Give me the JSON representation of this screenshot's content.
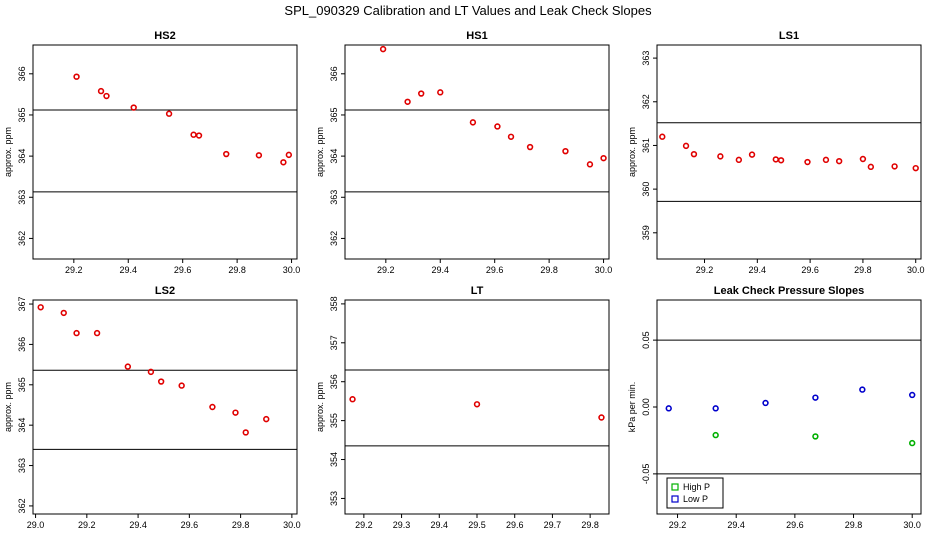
{
  "figure_title": "SPL_090329  Calibration and LT Values and Leak Check Slopes",
  "colors": {
    "points": "#e00000",
    "high_p": "#00b000",
    "low_p": "#0000cc",
    "axis": "#000000"
  },
  "chart_data": [
    {
      "type": "scatter",
      "title": "HS2",
      "xlabel": "",
      "ylabel": "approx. ppm",
      "xlim": [
        29.05,
        30.02
      ],
      "ylim": [
        361.5,
        366.7
      ],
      "xticks": [
        29.2,
        29.4,
        29.6,
        29.8,
        30.0
      ],
      "xtick_labels": [
        "29.2",
        "29.4",
        "29.6",
        "29.8",
        "30.0"
      ],
      "yticks": [
        362,
        363,
        364,
        365,
        366
      ],
      "ytick_labels": [
        "362",
        "363",
        "364",
        "365",
        "366"
      ],
      "hlines": [
        365.12,
        363.13
      ],
      "series": [
        {
          "x": [
            29.21,
            29.3,
            29.32,
            29.42,
            29.55,
            29.64,
            29.66,
            29.76,
            29.88,
            29.97,
            29.99
          ],
          "y": [
            365.93,
            365.58,
            365.46,
            365.18,
            365.03,
            364.52,
            364.5,
            364.05,
            364.02,
            363.85,
            364.03
          ]
        }
      ]
    },
    {
      "type": "scatter",
      "title": "HS1",
      "xlabel": "",
      "ylabel": "approx. ppm",
      "xlim": [
        29.05,
        30.02
      ],
      "ylim": [
        361.5,
        366.7
      ],
      "xticks": [
        29.2,
        29.4,
        29.6,
        29.8,
        30.0
      ],
      "xtick_labels": [
        "29.2",
        "29.4",
        "29.6",
        "29.8",
        "30.0"
      ],
      "yticks": [
        362,
        363,
        364,
        365,
        366
      ],
      "ytick_labels": [
        "362",
        "363",
        "364",
        "365",
        "366"
      ],
      "hlines": [
        365.12,
        363.13
      ],
      "series": [
        {
          "x": [
            29.19,
            29.28,
            29.33,
            29.4,
            29.52,
            29.61,
            29.66,
            29.73,
            29.86,
            29.95,
            30.0
          ],
          "y": [
            366.6,
            365.32,
            365.52,
            365.55,
            364.82,
            364.72,
            364.47,
            364.22,
            364.12,
            363.8,
            363.95
          ]
        }
      ]
    },
    {
      "type": "scatter",
      "title": "LS1",
      "xlabel": "",
      "ylabel": "approx. ppm",
      "xlim": [
        29.02,
        30.02
      ],
      "ylim": [
        358.4,
        363.3
      ],
      "xticks": [
        29.2,
        29.4,
        29.6,
        29.8,
        30.0
      ],
      "xtick_labels": [
        "29.2",
        "29.4",
        "29.6",
        "29.8",
        "30.0"
      ],
      "yticks": [
        359,
        360,
        361,
        362,
        363
      ],
      "ytick_labels": [
        "359",
        "360",
        "361",
        "362",
        "363"
      ],
      "hlines": [
        361.52,
        359.72
      ],
      "series": [
        {
          "x": [
            29.04,
            29.13,
            29.16,
            29.26,
            29.33,
            29.38,
            29.47,
            29.49,
            29.59,
            29.66,
            29.71,
            29.8,
            29.83,
            29.92,
            30.0
          ],
          "y": [
            361.2,
            360.99,
            360.8,
            360.75,
            360.67,
            360.79,
            360.68,
            360.66,
            360.62,
            360.67,
            360.64,
            360.69,
            360.51,
            360.52,
            360.48
          ]
        }
      ]
    },
    {
      "type": "scatter",
      "title": "LS2",
      "xlabel": "",
      "ylabel": "approx. ppm",
      "xlim": [
        28.99,
        30.02
      ],
      "ylim": [
        361.8,
        367.1
      ],
      "xticks": [
        29.0,
        29.2,
        29.4,
        29.6,
        29.8,
        30.0
      ],
      "xtick_labels": [
        "29.0",
        "29.2",
        "29.4",
        "29.6",
        "29.8",
        "30.0"
      ],
      "yticks": [
        362,
        363,
        364,
        365,
        366,
        367
      ],
      "ytick_labels": [
        "362",
        "363",
        "364",
        "365",
        "366",
        "367"
      ],
      "hlines": [
        365.36,
        363.4
      ],
      "series": [
        {
          "x": [
            29.02,
            29.11,
            29.16,
            29.24,
            29.36,
            29.45,
            29.49,
            29.57,
            29.69,
            29.78,
            29.82,
            29.9
          ],
          "y": [
            366.92,
            366.78,
            366.28,
            366.28,
            365.45,
            365.32,
            365.08,
            364.98,
            364.45,
            364.31,
            363.82,
            364.15
          ]
        }
      ]
    },
    {
      "type": "scatter",
      "title": "LT",
      "xlabel": "",
      "ylabel": "approx. ppm",
      "xlim": [
        29.15,
        29.85
      ],
      "ylim": [
        352.6,
        358.1
      ],
      "xticks": [
        29.2,
        29.3,
        29.4,
        29.5,
        29.6,
        29.7,
        29.8
      ],
      "xtick_labels": [
        "29.2",
        "29.3",
        "29.4",
        "29.5",
        "29.6",
        "29.7",
        "29.8"
      ],
      "yticks": [
        353,
        354,
        355,
        356,
        357,
        358
      ],
      "ytick_labels": [
        "353",
        "354",
        "355",
        "356",
        "357",
        "358"
      ],
      "hlines": [
        356.3,
        354.35
      ],
      "series": [
        {
          "x": [
            29.17,
            29.5,
            29.83
          ],
          "y": [
            355.55,
            355.42,
            355.08
          ]
        }
      ]
    },
    {
      "type": "scatter",
      "title": "Leak Check Pressure Slopes",
      "xlabel": "",
      "ylabel": "kPa per min.",
      "xlim": [
        29.13,
        30.03
      ],
      "ylim": [
        -0.08,
        0.08
      ],
      "xticks": [
        29.2,
        29.4,
        29.6,
        29.8,
        30.0
      ],
      "xtick_labels": [
        "29.2",
        "29.4",
        "29.6",
        "29.8",
        "30.0"
      ],
      "yticks": [
        -0.05,
        0.0,
        0.05
      ],
      "ytick_labels": [
        "-0.05",
        "0.00",
        "0.05"
      ],
      "hlines": [
        0.05,
        -0.05
      ],
      "legend": "bottom-left",
      "series": [
        {
          "name": "High P",
          "x": [
            29.33,
            29.67,
            30.0
          ],
          "y": [
            -0.021,
            -0.022,
            -0.027
          ]
        },
        {
          "name": "Low P",
          "x": [
            29.17,
            29.33,
            29.5,
            29.67,
            29.83,
            30.0
          ],
          "y": [
            -0.001,
            -0.001,
            0.003,
            0.007,
            0.013,
            0.009
          ]
        }
      ]
    }
  ]
}
